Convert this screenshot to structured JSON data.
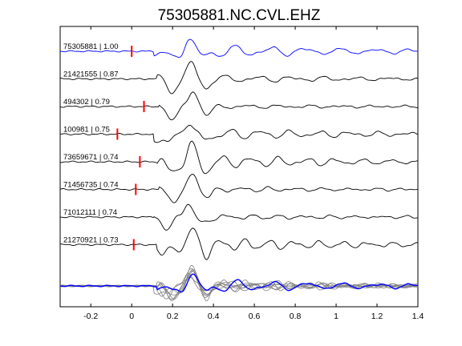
{
  "chart_data": {
    "type": "line",
    "title": "75305881.NC.CVL.EHZ",
    "xlabel": "",
    "ylabel": "",
    "xlim": [
      -0.35,
      1.4
    ],
    "xticks": [
      -0.2,
      0,
      0.2,
      0.4,
      0.6,
      0.8,
      1,
      1.2,
      1.4
    ],
    "grid": false,
    "colors": {
      "reference": "#0000ff",
      "trace": "#000000",
      "stack": "#808080",
      "pick": "#ff0000"
    },
    "series": [
      {
        "name": "75305881 | 1.00",
        "pick": 0.0
      },
      {
        "name": "21421555 | 0.87",
        "pick": null
      },
      {
        "name": "494302 | 0.79",
        "pick": 0.06
      },
      {
        "name": "100981 | 0.75",
        "pick": -0.07
      },
      {
        "name": "73659671 | 0.74",
        "pick": 0.04
      },
      {
        "name": "71456735 | 0.74",
        "pick": 0.02
      },
      {
        "name": "71012111 | 0.74",
        "pick": null
      },
      {
        "name": "21270921 | 0.73",
        "pick": 0.01
      }
    ]
  }
}
